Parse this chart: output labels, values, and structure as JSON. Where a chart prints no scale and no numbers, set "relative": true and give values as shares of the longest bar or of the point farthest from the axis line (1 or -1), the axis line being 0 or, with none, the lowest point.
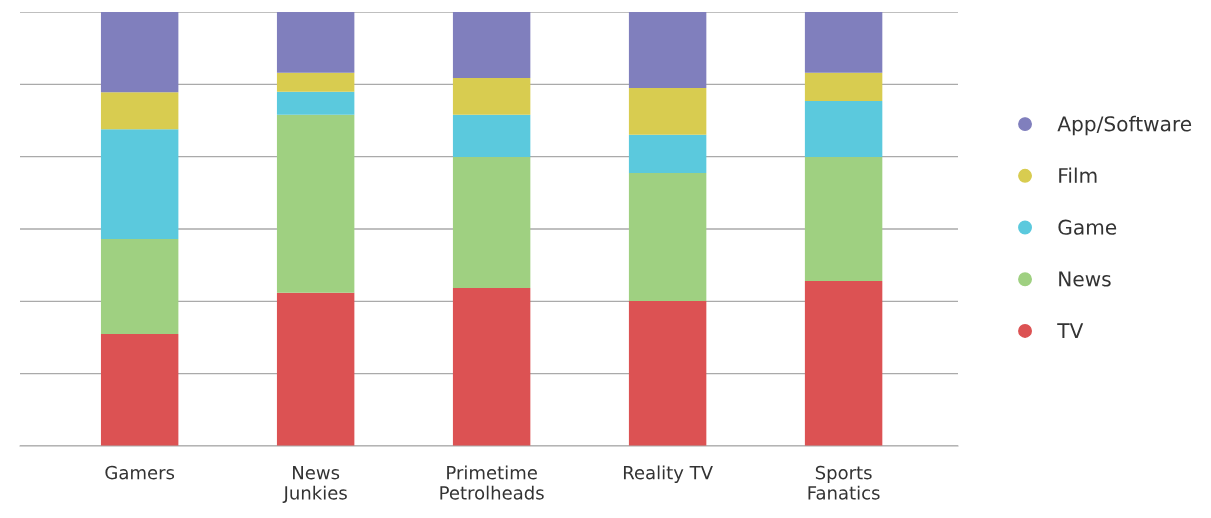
{
  "chart_data": {
    "type": "bar",
    "stacked": true,
    "relative": true,
    "grid": "y",
    "legend": "right",
    "marker": "circle",
    "categories": [
      "Gamers",
      "News\nJunkies",
      "Primetime\nPetrolheads",
      "Reality TV",
      "Sports\nFanatics"
    ],
    "series": [
      {
        "name": "TV",
        "color": "#dc5253",
        "values": [
          0.258,
          0.353,
          0.364,
          0.334,
          0.38
        ]
      },
      {
        "name": "News",
        "color": "#9fd081",
        "values": [
          0.219,
          0.41,
          0.302,
          0.295,
          0.286
        ]
      },
      {
        "name": "Game",
        "color": "#5bc9dd",
        "values": [
          0.253,
          0.053,
          0.097,
          0.088,
          0.129
        ]
      },
      {
        "name": "Film",
        "color": "#d8cc50",
        "values": [
          0.085,
          0.044,
          0.085,
          0.108,
          0.065
        ]
      },
      {
        "name": "App/Software",
        "color": "#807fbd",
        "values": [
          0.185,
          0.14,
          0.152,
          0.175,
          0.14
        ]
      }
    ]
  }
}
